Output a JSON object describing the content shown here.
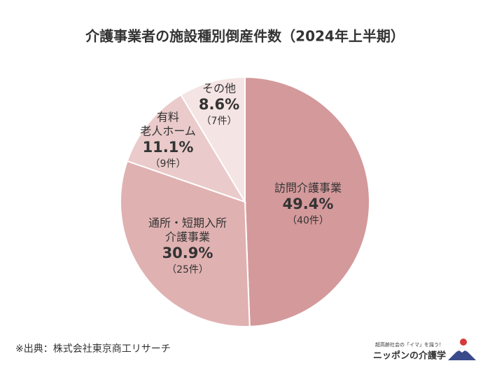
{
  "chart_data": {
    "type": "pie",
    "title": "介護事業者の施設種別倒産件数（2024年上半期）",
    "categories": [
      [
        "訪問介護事業"
      ],
      [
        "通所・短期入所",
        "介護事業"
      ],
      [
        "有料",
        "老人ホーム"
      ],
      [
        "その他"
      ]
    ],
    "values": [
      49.4,
      30.9,
      11.1,
      8.6
    ],
    "value_labels": [
      "49.4%",
      "30.9%",
      "11.1%",
      "8.6%"
    ],
    "counts": [
      40,
      25,
      9,
      7
    ],
    "count_labels": [
      "（40件）",
      "（25件）",
      "（9件）",
      "（7件）"
    ],
    "colors": [
      "#d4999b",
      "#e0b1b1",
      "#eacaca",
      "#f4e4e3"
    ],
    "start_angle": 0,
    "direction": "clockwise"
  },
  "source": "※出典：株式会社東京商工リサーチ",
  "logo": {
    "tagline": "超高齢社会の「イマ」を識う！",
    "name": "ニッポンの介護学"
  }
}
